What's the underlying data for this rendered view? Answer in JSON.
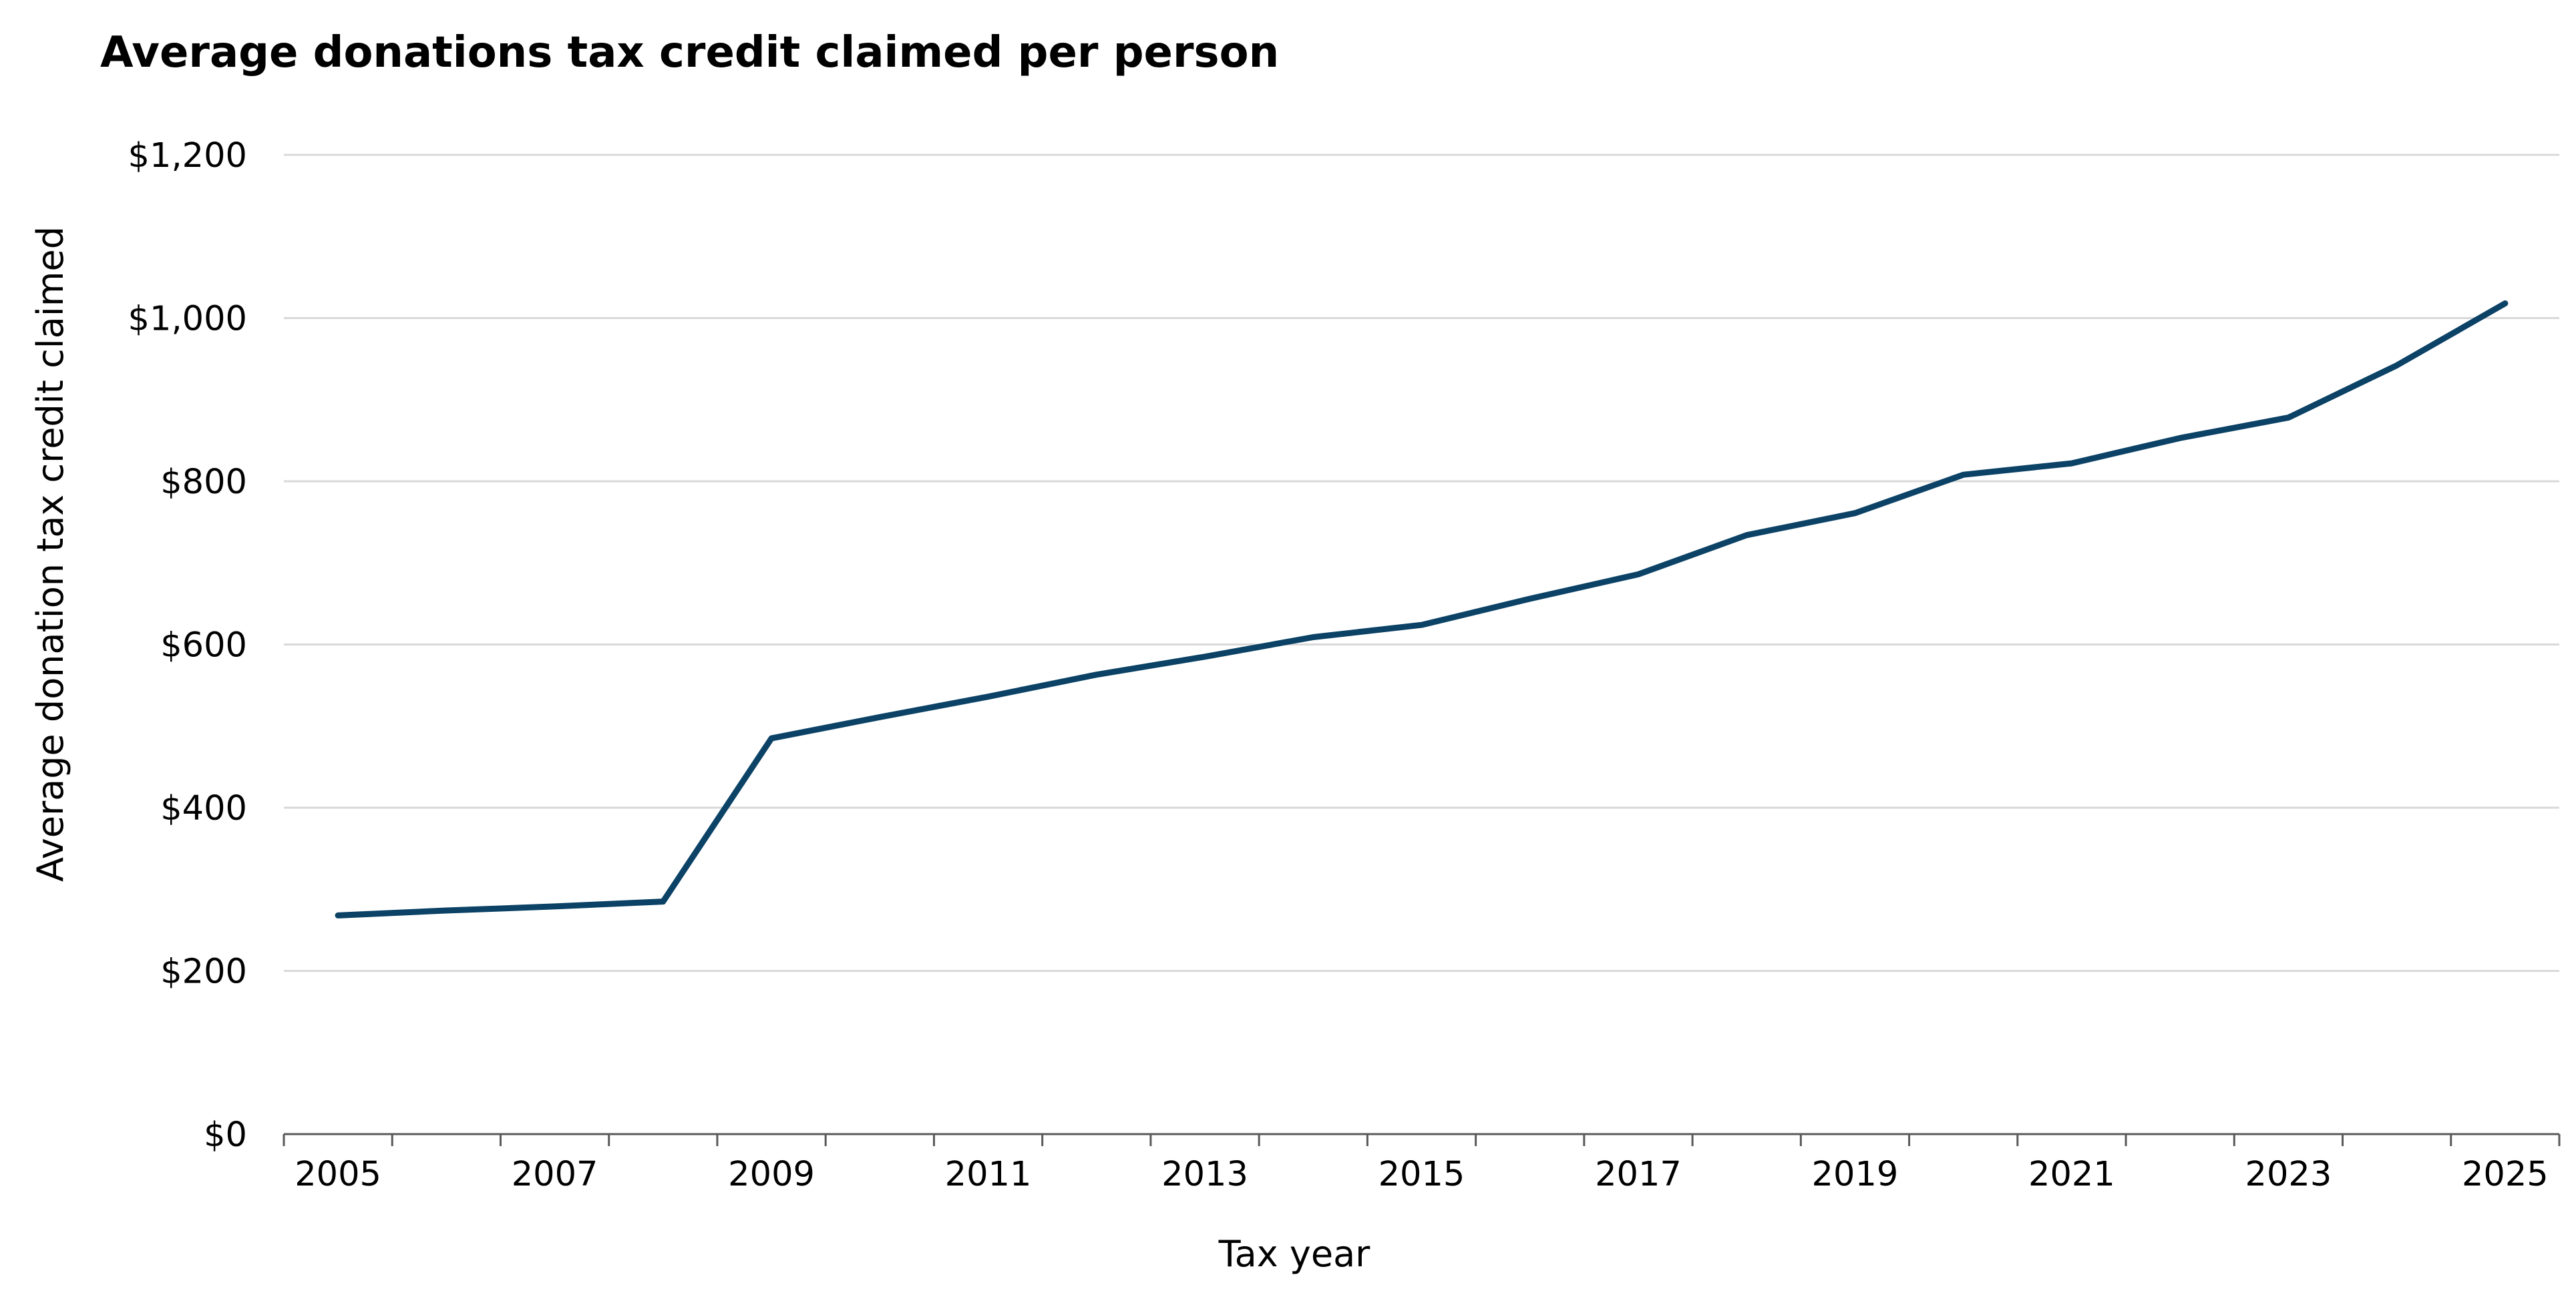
{
  "colors": {
    "series": "#0b4266",
    "grid": "#d9d9d9",
    "axis": "#595959"
  },
  "chart_data": {
    "type": "line",
    "title": "Average donations tax credit claimed per person",
    "xlabel": "Tax year",
    "ylabel": "Average donation tax credit claimed",
    "x": [
      2005,
      2006,
      2007,
      2008,
      2009,
      2010,
      2011,
      2012,
      2013,
      2014,
      2015,
      2016,
      2017,
      2018,
      2019,
      2020,
      2021,
      2022,
      2023,
      2024,
      2025
    ],
    "x_tick_labels": [
      "2005",
      "2007",
      "2009",
      "2011",
      "2013",
      "2015",
      "2017",
      "2019",
      "2021",
      "2023",
      "2025"
    ],
    "y_tick_values": [
      0,
      200,
      400,
      600,
      800,
      1000,
      1200
    ],
    "y_tick_labels": [
      "$0",
      "$200",
      "$400",
      "$600",
      "$800",
      "$1,000",
      "$1,200"
    ],
    "ylim": [
      0,
      1200
    ],
    "xlim": [
      2004.5,
      2025.5
    ],
    "grid": "horizontal",
    "legend": "none",
    "series": [
      {
        "values": [
          268,
          274,
          279,
          285,
          485,
          511,
          536,
          563,
          585,
          609,
          624,
          656,
          686,
          734,
          761,
          808,
          822,
          853,
          878,
          942,
          1018
        ]
      }
    ]
  }
}
